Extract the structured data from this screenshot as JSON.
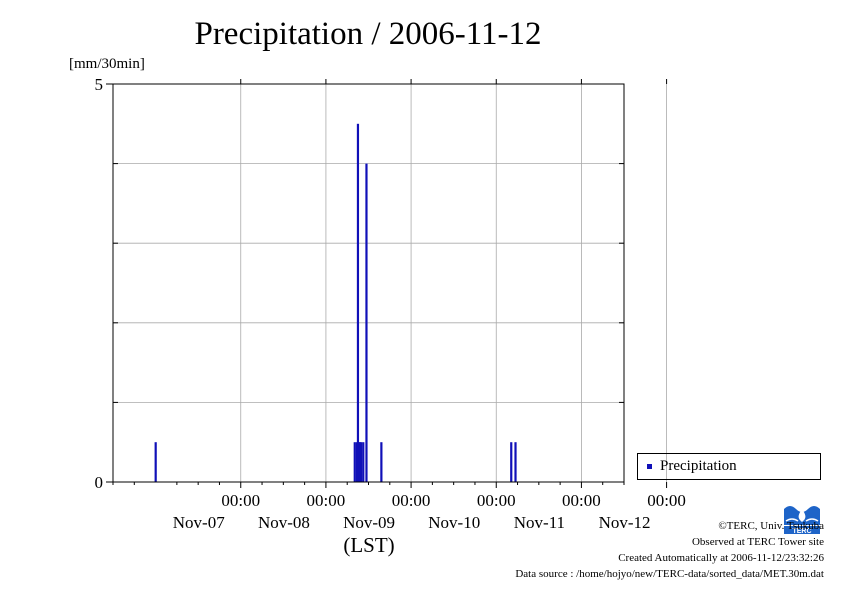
{
  "chart_data": {
    "type": "bar",
    "title": "Precipitation / 2006-11-12",
    "ylabel": "[mm/30min]",
    "xlabel": "(LST)",
    "ylim": [
      0,
      5
    ],
    "y_ticks": [
      {
        "value": 0,
        "label": "0"
      },
      {
        "value": 5,
        "label": "5"
      }
    ],
    "y_grid_step": 1,
    "x_range_days": [
      -1.5,
      4.5
    ],
    "x_ticks": [
      {
        "day": 0,
        "time": "00:00",
        "date": "Nov-07"
      },
      {
        "day": 1,
        "time": "00:00",
        "date": "Nov-08"
      },
      {
        "day": 2,
        "time": "00:00",
        "date": "Nov-09"
      },
      {
        "day": 3,
        "time": "00:00",
        "date": "Nov-10"
      },
      {
        "day": 4,
        "time": "00:00",
        "date": "Nov-11"
      },
      {
        "day": 5,
        "time": "00:00",
        "date": "Nov-12"
      }
    ],
    "grid": true,
    "legend_position": "right",
    "series": [
      {
        "name": "Precipitation",
        "color": "#1010b8",
        "points": [
          {
            "x": 37.4,
            "y": 0.5
          },
          {
            "x": 37.8,
            "y": 0.5
          },
          {
            "x": 22.7,
            "y": 0.5
          },
          {
            "x": 22.9,
            "y": 0.5
          },
          {
            "x": 23.0,
            "y": 4.5
          },
          {
            "x": 23.1,
            "y": 0.5
          },
          {
            "x": 23.2,
            "y": 0.5
          },
          {
            "x": 23.3,
            "y": 0.5
          },
          {
            "x": 23.5,
            "y": 0.5
          },
          {
            "x": 23.8,
            "y": 4.0
          },
          {
            "x": 25.2,
            "y": 0.5
          },
          {
            "x": 4.0,
            "y": 0.5
          }
        ]
      }
    ]
  },
  "credits": {
    "copyright": "©TERC, Univ. Tsukuba",
    "observed": "Observed at TERC Tower site",
    "created": "Created Automatically at 2006-11-12/23:32:26",
    "source": "Data source : /home/hojyo/new/TERC-data/sorted_data/MET.30m.dat"
  },
  "logo_text": "TERC"
}
